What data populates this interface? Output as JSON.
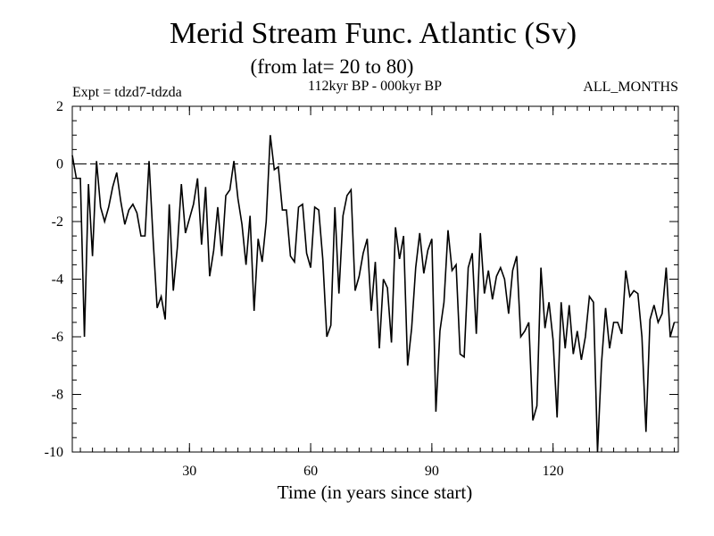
{
  "chart_data": {
    "type": "line",
    "title": "Merid Stream Func. Atlantic (Sv)",
    "subtitle": "(from lat= 20 to 80)",
    "left_label": "Expt = tdzd7-tdzda",
    "center_label": "112kyr BP - 000kyr BP",
    "right_label": "ALL_MONTHS",
    "xlabel": "Time (in years since start)",
    "ylabel": "",
    "xlim": [
      1,
      151
    ],
    "ylim": [
      -10,
      2
    ],
    "x_ticks": [
      30,
      60,
      90,
      120
    ],
    "y_ticks": [
      2,
      0,
      -2,
      -4,
      -6,
      -8,
      -10
    ],
    "reference_line": 0,
    "x_start": 1,
    "series": [
      {
        "name": "Merid Stream Func.",
        "values": [
          0.3,
          -0.5,
          -0.5,
          -6.0,
          -0.7,
          -3.2,
          0.1,
          -1.5,
          -2.0,
          -1.5,
          -0.8,
          -0.3,
          -1.3,
          -2.1,
          -1.6,
          -1.4,
          -1.7,
          -2.5,
          -2.5,
          0.1,
          -2.6,
          -5.0,
          -4.6,
          -5.4,
          -1.4,
          -4.4,
          -2.9,
          -0.7,
          -2.4,
          -1.9,
          -1.4,
          -0.5,
          -2.8,
          -0.8,
          -3.9,
          -3.0,
          -1.5,
          -3.2,
          -1.1,
          -0.9,
          0.1,
          -1.2,
          -2.1,
          -3.5,
          -1.8,
          -5.1,
          -2.6,
          -3.4,
          -2.0,
          1.0,
          -0.2,
          -0.1,
          -1.6,
          -1.6,
          -3.2,
          -3.4,
          -1.5,
          -1.4,
          -3.1,
          -3.6,
          -1.5,
          -1.6,
          -3.3,
          -6.0,
          -5.6,
          -1.5,
          -4.5,
          -1.8,
          -1.1,
          -0.9,
          -4.4,
          -3.9,
          -3.1,
          -2.6,
          -5.1,
          -3.4,
          -6.4,
          -4.0,
          -4.3,
          -6.2,
          -2.2,
          -3.3,
          -2.5,
          -7.0,
          -5.7,
          -3.6,
          -2.4,
          -3.8,
          -3.0,
          -2.6,
          -8.6,
          -5.8,
          -4.8,
          -2.3,
          -3.7,
          -3.5,
          -6.6,
          -6.7,
          -3.6,
          -3.1,
          -5.9,
          -2.4,
          -4.5,
          -3.7,
          -4.7,
          -3.9,
          -3.6,
          -4.0,
          -5.2,
          -3.7,
          -3.2,
          -6.0,
          -5.8,
          -5.5,
          -8.9,
          -8.4,
          -3.6,
          -5.7,
          -4.8,
          -6.1,
          -8.8,
          -4.8,
          -6.4,
          -4.9,
          -6.6,
          -5.8,
          -6.8,
          -6.0,
          -4.6,
          -4.8,
          -10.1,
          -6.9,
          -5.0,
          -6.4,
          -5.5,
          -5.5,
          -5.9,
          -3.7,
          -4.6,
          -4.4,
          -4.5,
          -6.0,
          -9.3,
          -5.4,
          -4.9,
          -5.5,
          -5.2,
          -3.6,
          -6.0,
          -5.5
        ]
      }
    ]
  }
}
